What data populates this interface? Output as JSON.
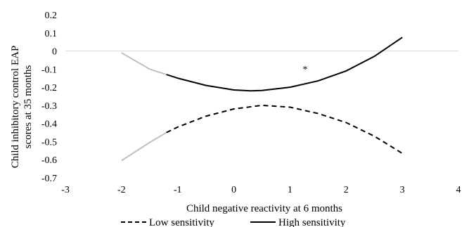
{
  "chart_data": {
    "type": "line",
    "title": "",
    "xlabel": "Child negative reactivity at 6 months",
    "ylabel_lines": [
      "Child inhibitory control EAP",
      "scores at 35 months"
    ],
    "xlim": [
      -3,
      4
    ],
    "ylim": [
      -0.7,
      0.2
    ],
    "x_ticks": [
      "-3",
      "-2",
      "-1",
      "0",
      "1",
      "2",
      "3",
      "4"
    ],
    "y_ticks": [
      "0.2",
      "0.1",
      "0",
      "-0.1",
      "-0.2",
      "-0.3",
      "-0.4",
      "-0.5",
      "-0.6",
      "-0.7"
    ],
    "grid": false,
    "legend_position": "bottom",
    "annotation": {
      "text": "*",
      "x": 1.27,
      "y": -0.08
    },
    "series": [
      {
        "name": "Low sensitivity",
        "style": "dashed",
        "color": "#000000",
        "region_color": "#c0c0c0",
        "region_cutoff": -1.2,
        "x": [
          -2.0,
          -1.5,
          -1.2,
          -1.0,
          -0.5,
          0.0,
          0.5,
          1.0,
          1.5,
          2.0,
          2.5,
          3.0
        ],
        "y": [
          -0.605,
          -0.505,
          -0.45,
          -0.42,
          -0.36,
          -0.32,
          -0.3,
          -0.31,
          -0.345,
          -0.395,
          -0.47,
          -0.565
        ]
      },
      {
        "name": "High sensitivity",
        "style": "solid",
        "color": "#000000",
        "region_color": "#c0c0c0",
        "region_cutoff": -1.2,
        "x": [
          -2.0,
          -1.5,
          -1.2,
          -1.0,
          -0.5,
          0.0,
          0.3,
          0.5,
          1.0,
          1.5,
          2.0,
          2.5,
          3.0
        ],
        "y": [
          -0.01,
          -0.1,
          -0.13,
          -0.15,
          -0.19,
          -0.215,
          -0.22,
          -0.218,
          -0.2,
          -0.165,
          -0.11,
          -0.03,
          0.075
        ]
      }
    ]
  }
}
